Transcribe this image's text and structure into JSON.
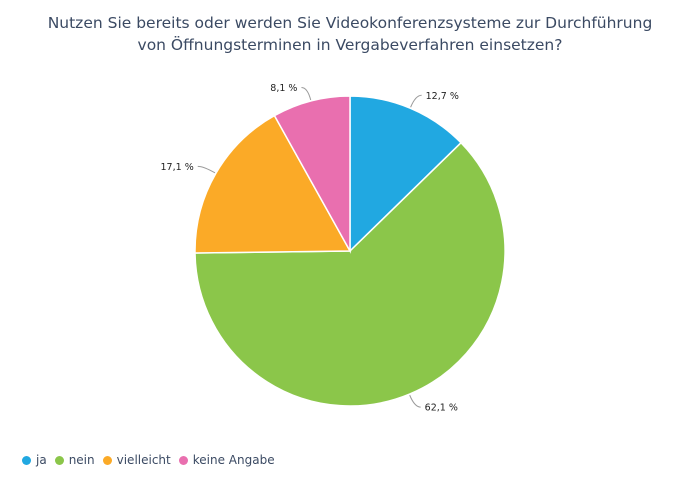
{
  "chart_data": {
    "type": "pie",
    "title_lines": [
      "Nutzen Sie bereits oder werden Sie Videokonferenzsysteme zur Durchführung",
      "von Öffnungsterminen in Vergabeverfahren einsetzen?"
    ],
    "categories": [
      "ja",
      "nein",
      "vielleicht",
      "keine Angabe"
    ],
    "values": [
      12.7,
      62.1,
      17.1,
      8.1
    ],
    "value_labels": [
      "12,7 %",
      "62,1 %",
      "17,1 %",
      "8,1 %"
    ],
    "colors": [
      "#21a8e1",
      "#8bc64a",
      "#fbaa27",
      "#e96faf"
    ],
    "legend_position": "bottom-left"
  }
}
